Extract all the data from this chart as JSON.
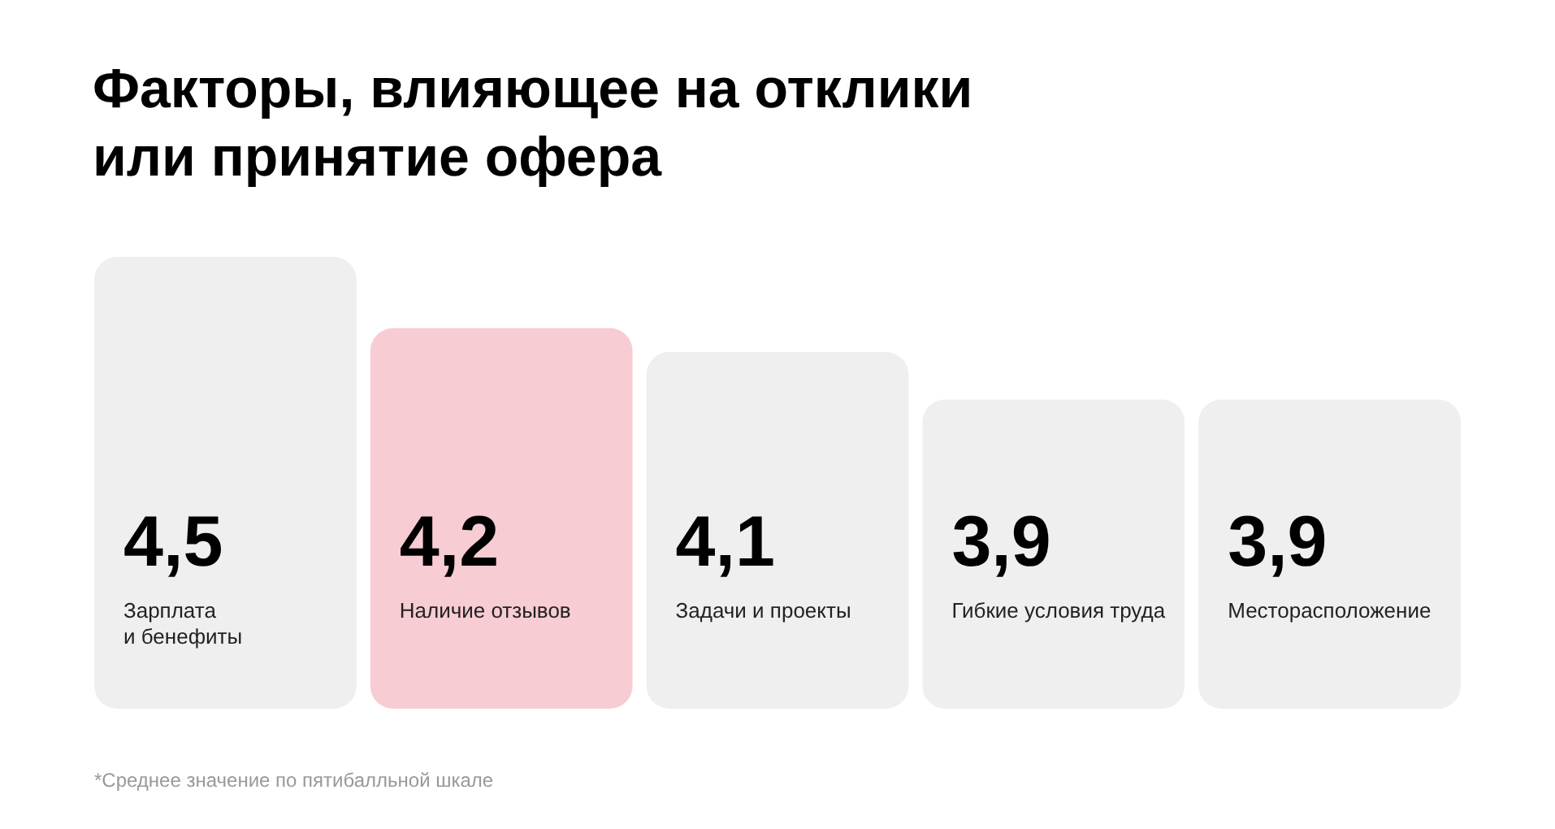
{
  "chart_data": {
    "type": "bar",
    "title": "Факторы, влияющее на отклики\nили принятие офера",
    "categories": [
      "Зарплата\nи бенефиты",
      "Наличие отзывов",
      "Задачи и проекты",
      "Гибкие условия труда",
      "Месторасположение"
    ],
    "values": [
      4.5,
      4.2,
      4.1,
      3.9,
      3.9
    ],
    "value_labels": [
      "4,5",
      "4,2",
      "4,1",
      "3,9",
      "3,9"
    ],
    "colors": [
      "#efefef",
      "#f7ccd3",
      "#efefef",
      "#efefef",
      "#efefef"
    ],
    "ylim": [
      2.6,
      4.5
    ],
    "tick_labels": "x",
    "annotations": [
      "*Среднее значение по пятибалльной шкале"
    ]
  }
}
